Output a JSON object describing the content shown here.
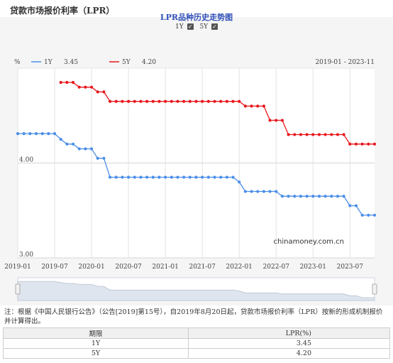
{
  "page": {
    "title": "贷款市场报价利率（LPR）"
  },
  "chart": {
    "title": "LPR品种历史走势图",
    "toggles": [
      {
        "label": "1Y",
        "checked": true
      },
      {
        "label": "5Y",
        "checked": true
      }
    ],
    "unit_label": "%",
    "legend": [
      {
        "name": "1Y",
        "value": "3.45",
        "color": "#4a8ee8"
      },
      {
        "name": "5Y",
        "value": "4.20",
        "color": "#e8151b"
      }
    ],
    "date_range": "2019-01 - 2023-11",
    "watermark": "chinamoney.com.cn",
    "check_icon": "checkmark-icon"
  },
  "chart_data": {
    "type": "line",
    "x": [
      "2019-01",
      "2019-02",
      "2019-03",
      "2019-04",
      "2019-05",
      "2019-06",
      "2019-07",
      "2019-08",
      "2019-09",
      "2019-10",
      "2019-11",
      "2019-12",
      "2020-01",
      "2020-02",
      "2020-03",
      "2020-04",
      "2020-05",
      "2020-06",
      "2020-07",
      "2020-08",
      "2020-09",
      "2020-10",
      "2020-11",
      "2020-12",
      "2021-01",
      "2021-02",
      "2021-03",
      "2021-04",
      "2021-05",
      "2021-06",
      "2021-07",
      "2021-08",
      "2021-09",
      "2021-10",
      "2021-11",
      "2021-12",
      "2022-01",
      "2022-02",
      "2022-03",
      "2022-04",
      "2022-05",
      "2022-06",
      "2022-07",
      "2022-08",
      "2022-09",
      "2022-10",
      "2022-11",
      "2022-12",
      "2023-01",
      "2023-02",
      "2023-03",
      "2023-04",
      "2023-05",
      "2023-06",
      "2023-07",
      "2023-08",
      "2023-09",
      "2023-10",
      "2023-11"
    ],
    "series": [
      {
        "name": "1Y",
        "color": "#4a8ee8",
        "values": [
          4.31,
          4.31,
          4.31,
          4.31,
          4.31,
          4.31,
          4.31,
          4.25,
          4.2,
          4.2,
          4.15,
          4.15,
          4.15,
          4.05,
          4.05,
          3.85,
          3.85,
          3.85,
          3.85,
          3.85,
          3.85,
          3.85,
          3.85,
          3.85,
          3.85,
          3.85,
          3.85,
          3.85,
          3.85,
          3.85,
          3.85,
          3.85,
          3.85,
          3.85,
          3.85,
          3.85,
          3.8,
          3.7,
          3.7,
          3.7,
          3.7,
          3.7,
          3.7,
          3.65,
          3.65,
          3.65,
          3.65,
          3.65,
          3.65,
          3.65,
          3.65,
          3.65,
          3.65,
          3.65,
          3.55,
          3.55,
          3.45,
          3.45,
          3.45
        ]
      },
      {
        "name": "5Y",
        "color": "#e8151b",
        "values": [
          null,
          null,
          null,
          null,
          null,
          null,
          null,
          4.85,
          4.85,
          4.85,
          4.8,
          4.8,
          4.8,
          4.75,
          4.75,
          4.65,
          4.65,
          4.65,
          4.65,
          4.65,
          4.65,
          4.65,
          4.65,
          4.65,
          4.65,
          4.65,
          4.65,
          4.65,
          4.65,
          4.65,
          4.65,
          4.65,
          4.65,
          4.65,
          4.65,
          4.65,
          4.65,
          4.6,
          4.6,
          4.6,
          4.6,
          4.45,
          4.45,
          4.45,
          4.3,
          4.3,
          4.3,
          4.3,
          4.3,
          4.3,
          4.3,
          4.3,
          4.3,
          4.3,
          4.2,
          4.2,
          4.2,
          4.2,
          4.2
        ]
      }
    ],
    "x_ticks": [
      "2019-01",
      "2019-07",
      "2020-01",
      "2020-07",
      "2021-01",
      "2021-07",
      "2022-01",
      "2022-07",
      "2023-01",
      "2023-07"
    ],
    "y_ticks": [
      "3.00",
      "4.00"
    ],
    "ylim": [
      3.0,
      5.0
    ],
    "grid": true,
    "legend_position": "top-left"
  },
  "notes": "注：根据《中国人民银行公告》（公告[2019]第15号），自2019年8月20日起，贷款市场报价利率（LPR）按新的形成机制报价并计算得出。",
  "table": {
    "headers": [
      "期限",
      "LPR(%)"
    ],
    "rows": [
      [
        "1Y",
        "3.45"
      ],
      [
        "5Y",
        "4.20"
      ]
    ]
  }
}
